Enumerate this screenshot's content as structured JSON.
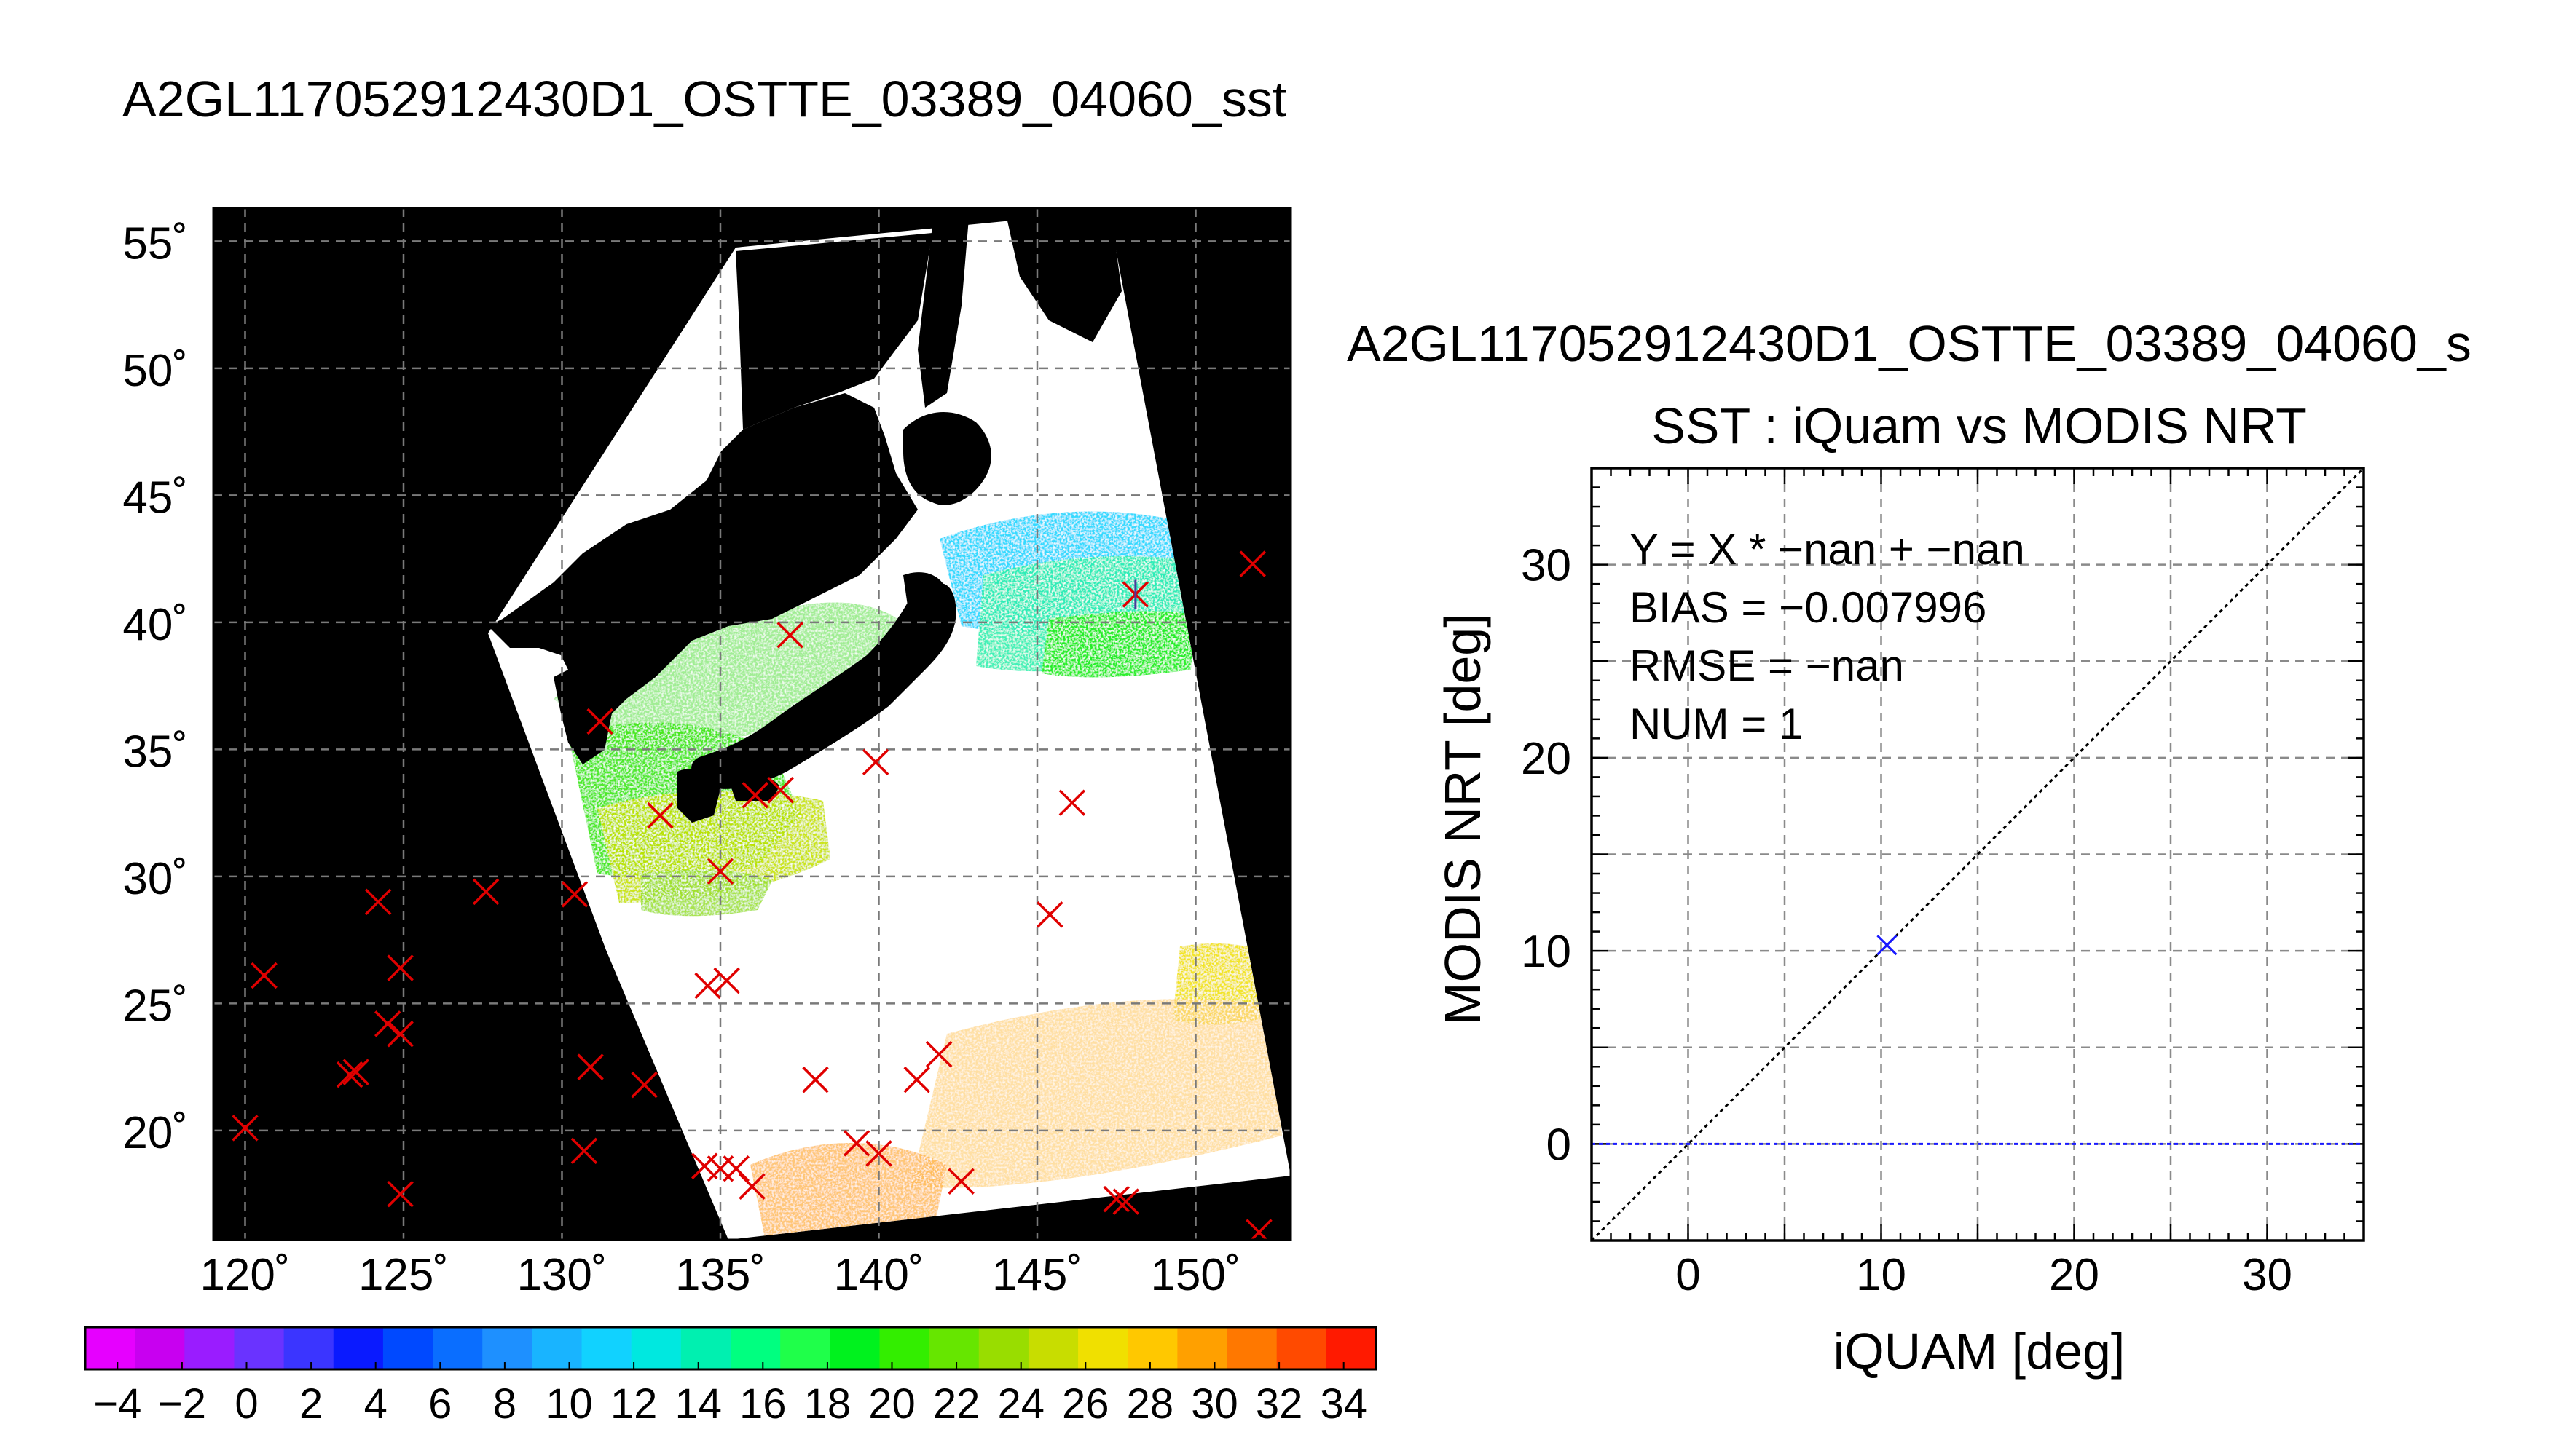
{
  "map": {
    "title": "A2GL117052912430D1_OSTTE_03389_04060_sst",
    "lat_ticks": [
      55,
      50,
      45,
      40,
      35,
      30,
      25,
      20
    ],
    "lon_ticks": [
      120,
      125,
      130,
      135,
      140,
      145,
      150
    ],
    "lat_range": [
      15.7,
      56.3
    ],
    "lon_range": [
      119,
      153
    ],
    "colorbar": {
      "ticks": [
        -4,
        -2,
        0,
        2,
        4,
        6,
        8,
        10,
        12,
        14,
        16,
        18,
        20,
        22,
        24,
        26,
        28,
        30,
        32,
        34
      ],
      "range": [
        -5,
        35
      ],
      "colors": [
        "#e600ff",
        "#c800f0",
        "#9a1cff",
        "#6a33ff",
        "#3b35ff",
        "#0a1aff",
        "#0049ff",
        "#0a6eff",
        "#1e90ff",
        "#19b4ff",
        "#11d2ff",
        "#00e8e0",
        "#00f0b0",
        "#00ff80",
        "#1fff4a",
        "#00f21e",
        "#33ee00",
        "#66e600",
        "#99dd00",
        "#c8dd00",
        "#f0e000",
        "#ffc800",
        "#ffa000",
        "#ff7800",
        "#ff4a00",
        "#ff1a00"
      ]
    },
    "insitu_points": [
      {
        "lon": 120.0,
        "lat": 20.1
      },
      {
        "lon": 120.6,
        "lat": 26.1
      },
      {
        "lon": 124.2,
        "lat": 29.0
      },
      {
        "lon": 124.9,
        "lat": 26.4
      },
      {
        "lon": 124.5,
        "lat": 24.2
      },
      {
        "lon": 124.9,
        "lat": 23.8
      },
      {
        "lon": 123.5,
        "lat": 22.3
      },
      {
        "lon": 123.3,
        "lat": 22.2
      },
      {
        "lon": 124.9,
        "lat": 17.5
      },
      {
        "lon": 127.6,
        "lat": 29.4
      },
      {
        "lon": 130.4,
        "lat": 29.3
      },
      {
        "lon": 130.9,
        "lat": 22.5
      },
      {
        "lon": 130.7,
        "lat": 19.2
      },
      {
        "lon": 132.6,
        "lat": 21.8
      },
      {
        "lon": 131.2,
        "lat": 36.1
      },
      {
        "lon": 133.1,
        "lat": 32.4
      },
      {
        "lon": 134.6,
        "lat": 25.7
      },
      {
        "lon": 135.2,
        "lat": 25.9
      },
      {
        "lon": 135.0,
        "lat": 30.2
      },
      {
        "lon": 136.1,
        "lat": 33.2
      },
      {
        "lon": 136.9,
        "lat": 33.4
      },
      {
        "lon": 137.2,
        "lat": 39.5
      },
      {
        "lon": 139.9,
        "lat": 34.5
      },
      {
        "lon": 138.0,
        "lat": 22.0
      },
      {
        "lon": 139.3,
        "lat": 19.5
      },
      {
        "lon": 140.0,
        "lat": 19.1
      },
      {
        "lon": 141.2,
        "lat": 22.0
      },
      {
        "lon": 141.9,
        "lat": 23.0
      },
      {
        "lon": 142.6,
        "lat": 18.0
      },
      {
        "lon": 134.5,
        "lat": 18.6
      },
      {
        "lon": 135.0,
        "lat": 18.5
      },
      {
        "lon": 135.5,
        "lat": 18.5
      },
      {
        "lon": 136.0,
        "lat": 17.8
      },
      {
        "lon": 145.4,
        "lat": 28.5
      },
      {
        "lon": 146.1,
        "lat": 32.9
      },
      {
        "lon": 147.5,
        "lat": 17.3
      },
      {
        "lon": 147.8,
        "lat": 17.2
      },
      {
        "lon": 148.1,
        "lat": 41.1
      },
      {
        "lon": 151.8,
        "lat": 42.3
      },
      {
        "lon": 152.0,
        "lat": 16.0
      }
    ],
    "insitu_color": "#e00000",
    "matched_point": {
      "lon": 148.1,
      "lat": 41.1
    },
    "matched_color": "#4a3a9a"
  },
  "chart_data": {
    "type": "scatter",
    "title": "A2GL117052912430D1_OSTTE_03389_04060_s",
    "subtitle": "SST : iQuam vs MODIS NRT",
    "xlabel": "iQUAM [deg]",
    "ylabel": "MODIS NRT [deg]",
    "xlim": [
      -5,
      35
    ],
    "ylim": [
      -5,
      35
    ],
    "xticks": [
      0,
      10,
      20,
      30
    ],
    "yticks": [
      0,
      10,
      20,
      30
    ],
    "grid": true,
    "stats": [
      "Y = X * −nan + −nan",
      "BIAS = −0.007996",
      "RMSE = −nan",
      "NUM = 1"
    ],
    "points": [
      {
        "x": 10.3,
        "y": 10.3
      }
    ],
    "point_color": "#1a1aff",
    "one_to_one_line": true,
    "fit_line_y": 0,
    "fit_line_color": "#1a1aff"
  }
}
